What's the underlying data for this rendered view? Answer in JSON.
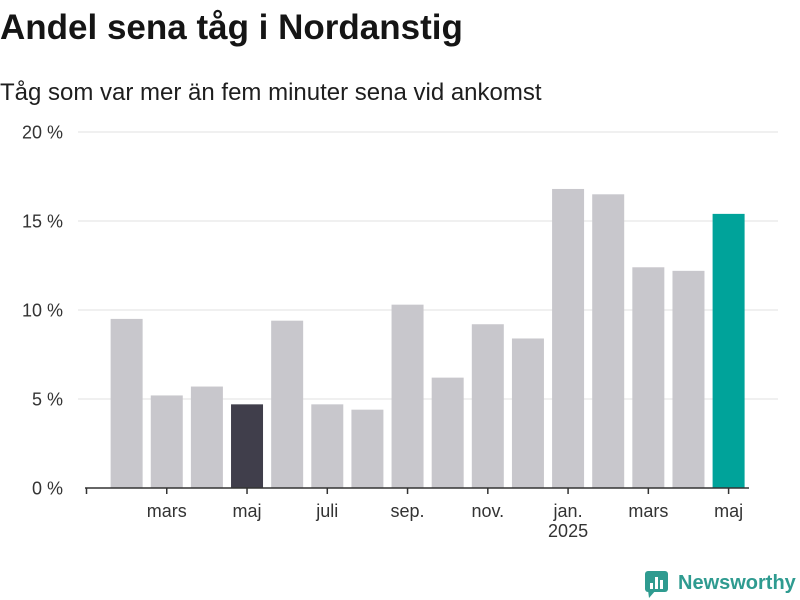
{
  "chart_data": {
    "type": "bar",
    "title": "Andel sena tåg i Nordanstig",
    "subtitle": "Tåg som var mer än fem minuter sena vid ankomst",
    "categories": [
      "2024-02",
      "2024-03",
      "2024-04",
      "2024-05",
      "2024-06",
      "2024-07",
      "2024-08",
      "2024-09",
      "2024-10",
      "2024-11",
      "2024-12",
      "2025-01",
      "2025-02",
      "2025-03",
      "2025-04",
      "2025-05"
    ],
    "values": [
      9.5,
      5.2,
      5.7,
      4.7,
      9.4,
      4.7,
      4.4,
      10.3,
      6.2,
      9.2,
      8.4,
      16.8,
      16.5,
      12.4,
      12.2,
      15.4
    ],
    "xlim": [
      "2024-01",
      "2025-05"
    ],
    "ylim": [
      0,
      20
    ],
    "y_ticks": [
      0,
      5,
      10,
      15,
      20
    ],
    "y_tick_labels": [
      "0 %",
      "5 %",
      "10 %",
      "15 %",
      "20 %"
    ],
    "x_ticks": [
      {
        "x": "2024-01"
      },
      {
        "x": "2024-03",
        "label": "mars"
      },
      {
        "x": "2024-05",
        "label": "maj"
      },
      {
        "x": "2024-07",
        "label": "juli"
      },
      {
        "x": "2024-09",
        "label": "sep."
      },
      {
        "x": "2024-11",
        "label": "nov."
      },
      {
        "x": "2025-01",
        "label": "jan.",
        "sublabel": "2025"
      },
      {
        "x": "2025-03",
        "label": "mars"
      },
      {
        "x": "2025-05",
        "label": "maj"
      }
    ],
    "grid": true,
    "legend": "none",
    "default_color": "#c8c7cc",
    "highlight_colors": {
      "2024-05": "#403e4b",
      "2025-05": "#00a39a"
    }
  },
  "brand": {
    "name": "Newsworthy",
    "icon": "newsworthy-logo-icon",
    "color": "#2f9b90"
  }
}
